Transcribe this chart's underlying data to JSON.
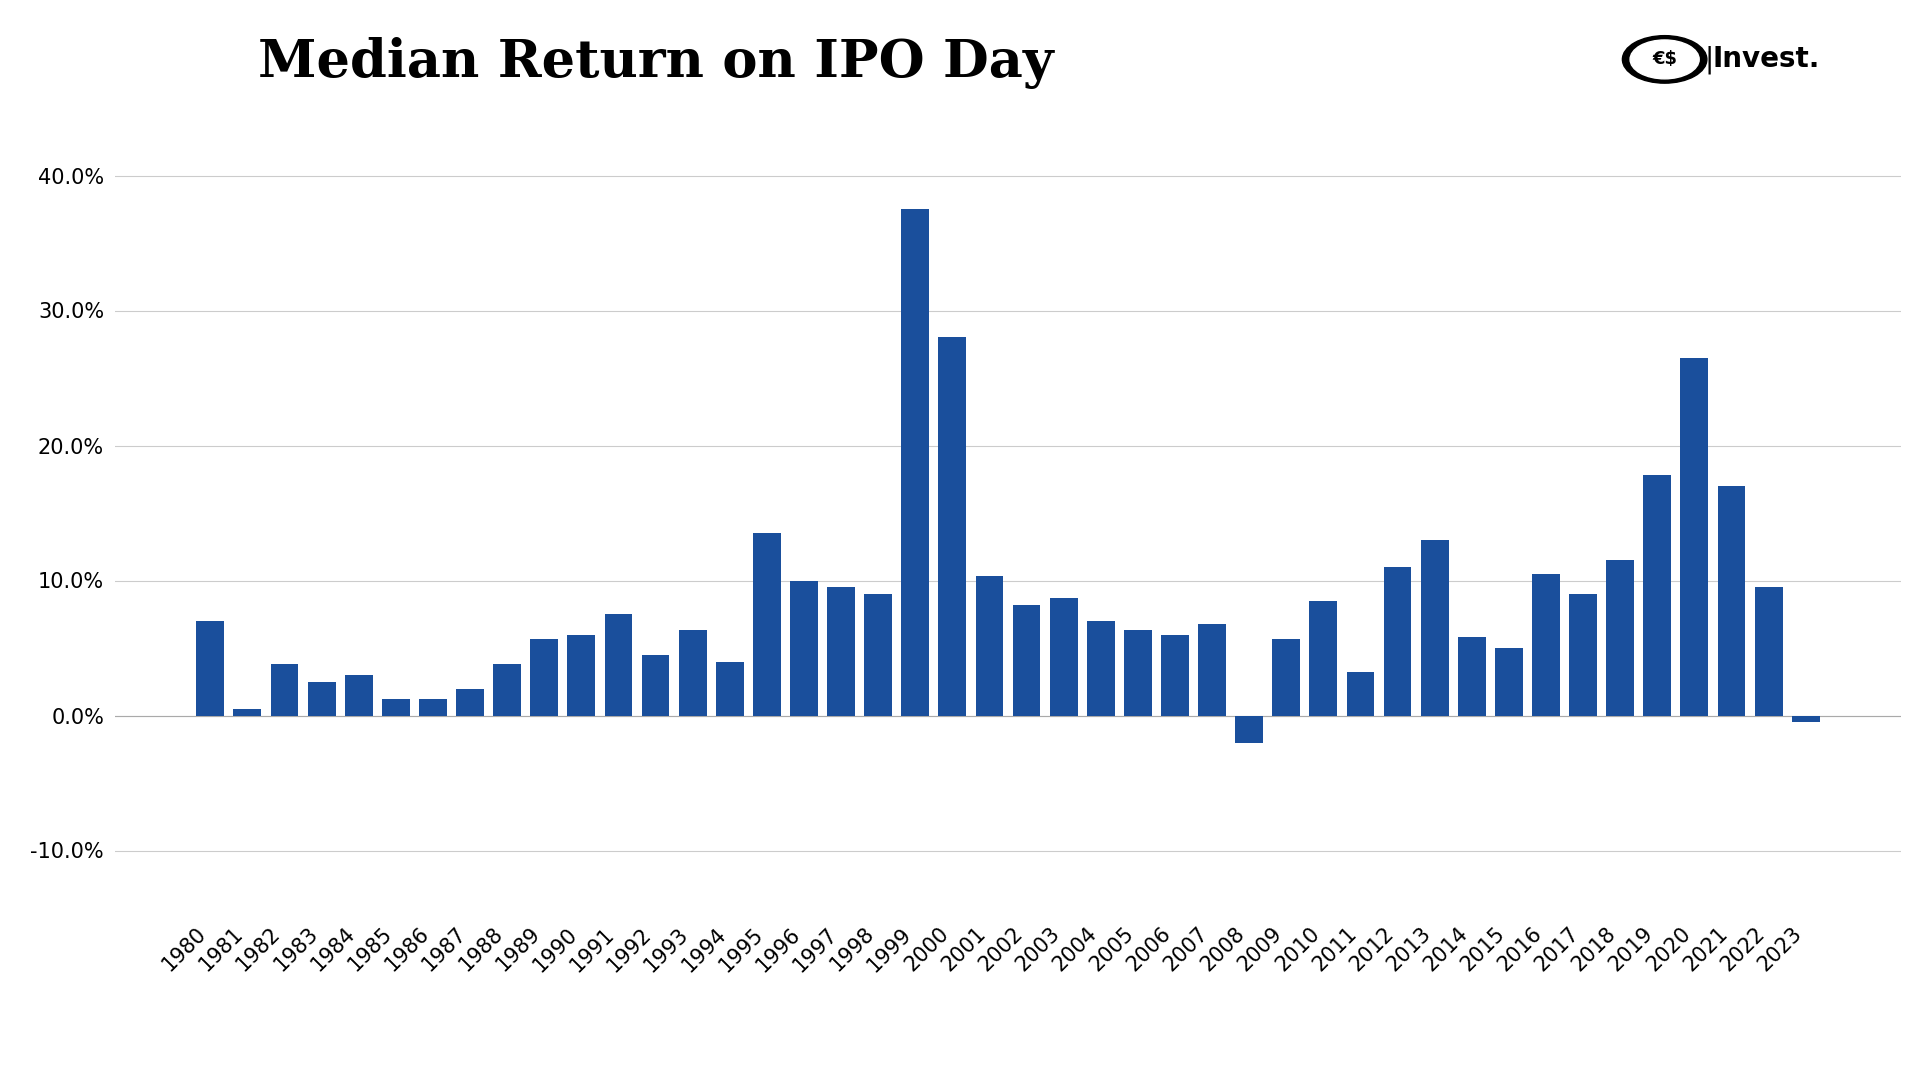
{
  "title": "Median Return on IPO Day",
  "bar_color": "#1A4F9C",
  "background_color": "#ffffff",
  "categories": [
    "1980",
    "1981",
    "1982",
    "1983",
    "1984",
    "1985",
    "1986",
    "1987",
    "1988",
    "1989",
    "1990",
    "1991",
    "1992",
    "1993",
    "1994",
    "1995",
    "1996",
    "1997",
    "1998",
    "1999",
    "2000",
    "2001",
    "2002",
    "2003",
    "2004",
    "2005",
    "2006",
    "2007",
    "2008",
    "2009",
    "2010",
    "2011",
    "2012",
    "2013",
    "2014",
    "2015",
    "2016",
    "2017",
    "2018",
    "2019",
    "2020",
    "2021",
    "2022",
    "2023"
  ],
  "values": [
    0.07,
    0.005,
    0.038,
    0.025,
    0.03,
    0.012,
    0.012,
    0.02,
    0.038,
    0.057,
    0.06,
    0.075,
    0.045,
    0.063,
    0.04,
    0.135,
    0.1,
    0.095,
    0.09,
    0.375,
    0.28,
    0.103,
    0.082,
    0.087,
    0.07,
    0.063,
    0.06,
    0.068,
    -0.02,
    0.057,
    0.085,
    0.032,
    0.11,
    0.13,
    0.058,
    0.05,
    0.105,
    0.09,
    0.115,
    0.178,
    0.265,
    0.17,
    0.095,
    -0.005
  ],
  "ylim": [
    -0.15,
    0.45
  ],
  "yticks": [
    -0.1,
    0.0,
    0.1,
    0.2,
    0.3,
    0.4
  ],
  "grid_color": "#cccccc",
  "title_fontsize": 38,
  "tick_fontsize": 15,
  "logo_invest_text": "Invest.",
  "logo_fontsize": 20
}
